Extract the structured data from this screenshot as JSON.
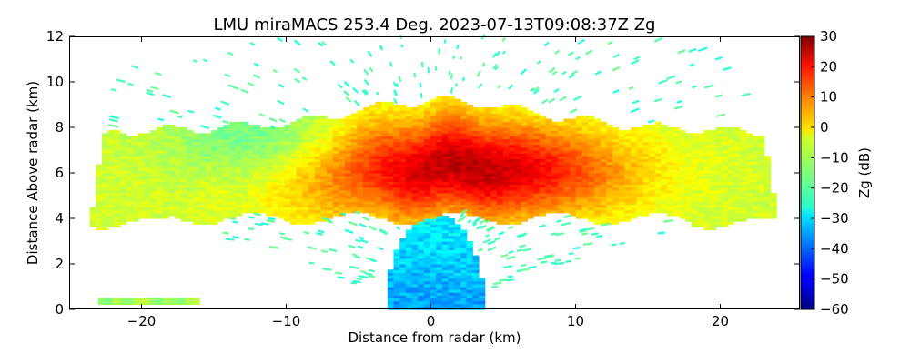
{
  "chart_data": {
    "type": "heatmap",
    "title": "LMU miraMACS 253.4 Deg. 2023-07-13T09:08:37Z  Zg",
    "xlabel": "Distance from radar (km)",
    "ylabel": "Distance Above radar  (km)",
    "xlim": [
      -25,
      25.5
    ],
    "ylim": [
      0,
      12
    ],
    "xticks": [
      -20,
      -10,
      0,
      10,
      20
    ],
    "xtick_labels": [
      "−20",
      "−10",
      "0",
      "10",
      "20"
    ],
    "yticks": [
      0,
      2,
      4,
      6,
      8,
      10,
      12
    ],
    "ytick_labels": [
      "0",
      "2",
      "4",
      "6",
      "8",
      "10",
      "12"
    ],
    "colorbar": {
      "label": "Zg (dB)",
      "range": [
        -60,
        30
      ],
      "ticks": [
        30,
        20,
        10,
        0,
        -10,
        -20,
        -30,
        -40,
        -50,
        -60
      ],
      "tick_labels": [
        "30",
        "20",
        "10",
        "0",
        "−10",
        "−20",
        "−30",
        "−40",
        "−50",
        "−60"
      ],
      "colormap": "jet"
    },
    "field": {
      "description_units": "dB",
      "cloud_layer_y_range_km": [
        4,
        9
      ],
      "core_max_dbz": 22,
      "lower_echo_region_x_km": [
        -3,
        4
      ],
      "lower_echo_region_y_km": [
        0,
        5
      ],
      "scan_max_range_km": 24
    },
    "grid": false
  }
}
